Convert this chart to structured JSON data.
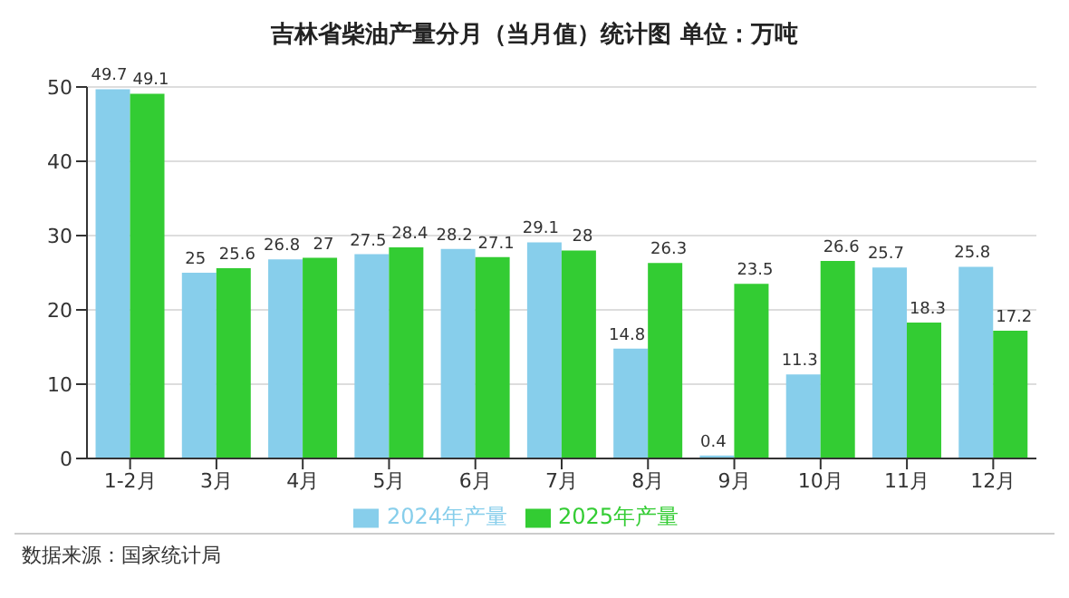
{
  "chart_data": {
    "type": "bar",
    "title": "吉林省柴油产量分月（当月值）统计图 单位：万吨",
    "categories": [
      "1-2月",
      "3月",
      "4月",
      "5月",
      "6月",
      "7月",
      "8月",
      "9月",
      "10月",
      "11月",
      "12月"
    ],
    "series": [
      {
        "name": "2024年产量",
        "color": "#87ceeb",
        "values": [
          49.7,
          25,
          26.8,
          27.5,
          28.2,
          29.1,
          14.8,
          0.4,
          11.3,
          25.7,
          25.8
        ]
      },
      {
        "name": "2025年产量",
        "color": "#33cc33",
        "values": [
          49.1,
          25.6,
          27,
          28.4,
          27.1,
          28,
          26.3,
          23.5,
          26.6,
          18.3,
          17.2
        ]
      }
    ],
    "ylim": [
      0,
      50
    ],
    "yticks": [
      0,
      10,
      20,
      30,
      40,
      50
    ],
    "grid": "y",
    "legend": "bottom",
    "data_labels": true,
    "annotations": [
      "数据来源：国家统计局"
    ]
  }
}
